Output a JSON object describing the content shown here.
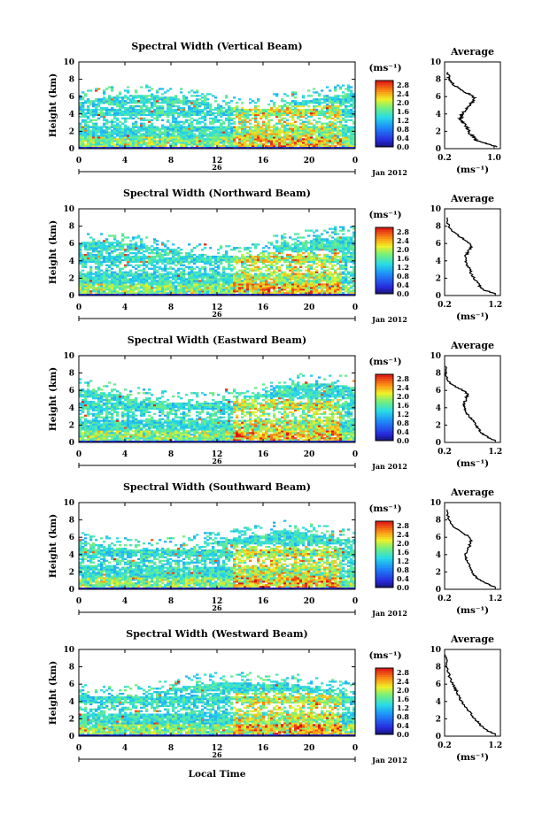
{
  "chart_data": [
    {
      "type": "heatmap",
      "title": "Spectral Width (Vertical Beam)",
      "ylabel": "Height (km)",
      "x_ticks": [
        "0",
        "4",
        "8",
        "12",
        "16",
        "20",
        "0"
      ],
      "y_ticks": [
        "0",
        "2",
        "4",
        "6",
        "8",
        "10"
      ],
      "xlim": [
        0,
        24
      ],
      "ylim": [
        0,
        10
      ],
      "day_label": "26",
      "month_label": "Jan 2012",
      "colorbar": {
        "unit": "(ms⁻¹)",
        "ticks": [
          "0.0",
          "0.4",
          "0.8",
          "1.2",
          "1.6",
          "2.0",
          "2.4",
          "2.8"
        ],
        "range": [
          0,
          3.0
        ]
      },
      "average": {
        "title": "Average",
        "xlabel": "(ms⁻¹)",
        "x_ticks": [
          "0.2",
          "1.0"
        ],
        "xlim": [
          0.2,
          1.1
        ],
        "profile": [
          [
            1.05,
            0.2
          ],
          [
            0.92,
            0.5
          ],
          [
            0.72,
            0.9
          ],
          [
            0.68,
            1.3
          ],
          [
            0.6,
            1.8
          ],
          [
            0.58,
            2.2
          ],
          [
            0.55,
            2.6
          ],
          [
            0.5,
            3.0
          ],
          [
            0.45,
            3.4
          ],
          [
            0.48,
            3.8
          ],
          [
            0.5,
            4.2
          ],
          [
            0.56,
            4.6
          ],
          [
            0.6,
            5.0
          ],
          [
            0.65,
            5.4
          ],
          [
            0.68,
            5.8
          ],
          [
            0.62,
            6.2
          ],
          [
            0.5,
            6.6
          ],
          [
            0.42,
            7.0
          ],
          [
            0.35,
            7.4
          ],
          [
            0.3,
            7.8
          ],
          [
            0.27,
            8.2
          ],
          [
            0.26,
            8.8
          ]
        ]
      }
    },
    {
      "type": "heatmap",
      "title": "Spectral Width (Northward Beam)",
      "ylabel": "Height (km)",
      "x_ticks": [
        "0",
        "4",
        "8",
        "12",
        "16",
        "20",
        "0"
      ],
      "y_ticks": [
        "0",
        "2",
        "4",
        "6",
        "8",
        "10"
      ],
      "xlim": [
        0,
        24
      ],
      "ylim": [
        0,
        10
      ],
      "day_label": "26",
      "month_label": "Jan 2012",
      "colorbar": {
        "unit": "(ms⁻¹)",
        "ticks": [
          "0.0",
          "0.4",
          "0.8",
          "1.2",
          "1.6",
          "2.0",
          "2.4",
          "2.8"
        ],
        "range": [
          0,
          3.0
        ]
      },
      "average": {
        "title": "Average",
        "xlabel": "(ms⁻¹)",
        "x_ticks": [
          "0.2",
          "1.2"
        ],
        "xlim": [
          0.2,
          1.3
        ],
        "profile": [
          [
            1.2,
            0.2
          ],
          [
            1.0,
            0.6
          ],
          [
            0.9,
            1.0
          ],
          [
            0.85,
            1.5
          ],
          [
            0.78,
            2.0
          ],
          [
            0.72,
            2.6
          ],
          [
            0.68,
            3.2
          ],
          [
            0.62,
            3.8
          ],
          [
            0.6,
            4.4
          ],
          [
            0.66,
            5.0
          ],
          [
            0.72,
            5.6
          ],
          [
            0.66,
            6.2
          ],
          [
            0.5,
            6.8
          ],
          [
            0.36,
            7.4
          ],
          [
            0.28,
            8.0
          ],
          [
            0.25,
            9.0
          ]
        ]
      }
    },
    {
      "type": "heatmap",
      "title": "Spectral Width (Eastward Beam)",
      "ylabel": "Height (km)",
      "x_ticks": [
        "0",
        "4",
        "8",
        "12",
        "16",
        "20",
        "0"
      ],
      "y_ticks": [
        "0",
        "2",
        "4",
        "6",
        "8",
        "10"
      ],
      "xlim": [
        0,
        24
      ],
      "ylim": [
        0,
        10
      ],
      "day_label": "26",
      "month_label": "Jan 2012",
      "colorbar": {
        "unit": "(ms⁻¹)",
        "ticks": [
          "0.0",
          "0.4",
          "0.8",
          "1.2",
          "1.6",
          "2.0",
          "2.4",
          "2.8"
        ],
        "range": [
          0,
          3.0
        ]
      },
      "average": {
        "title": "Average",
        "xlabel": "(ms⁻¹)",
        "x_ticks": [
          "0.2",
          "1.2"
        ],
        "xlim": [
          0.2,
          1.3
        ],
        "profile": [
          [
            1.2,
            0.2
          ],
          [
            1.05,
            0.6
          ],
          [
            0.95,
            1.0
          ],
          [
            0.88,
            1.5
          ],
          [
            0.82,
            2.0
          ],
          [
            0.74,
            2.6
          ],
          [
            0.66,
            3.2
          ],
          [
            0.6,
            3.8
          ],
          [
            0.58,
            4.4
          ],
          [
            0.62,
            5.0
          ],
          [
            0.66,
            5.6
          ],
          [
            0.5,
            6.2
          ],
          [
            0.3,
            6.8
          ],
          [
            0.24,
            7.6
          ],
          [
            0.22,
            8.8
          ]
        ]
      }
    },
    {
      "type": "heatmap",
      "title": "Spectral Width (Southward Beam)",
      "ylabel": "Height (km)",
      "x_ticks": [
        "0",
        "4",
        "8",
        "12",
        "16",
        "20",
        "0"
      ],
      "y_ticks": [
        "0",
        "2",
        "4",
        "6",
        "8",
        "10"
      ],
      "xlim": [
        0,
        24
      ],
      "ylim": [
        0,
        10
      ],
      "day_label": "26",
      "month_label": "Jan 2012",
      "colorbar": {
        "unit": "(ms⁻¹)",
        "ticks": [
          "0.0",
          "0.4",
          "0.8",
          "1.2",
          "1.6",
          "2.0",
          "2.4",
          "2.8"
        ],
        "range": [
          0,
          3.0
        ]
      },
      "average": {
        "title": "Average",
        "xlabel": "(ms⁻¹)",
        "x_ticks": [
          "0.2",
          "1.2"
        ],
        "xlim": [
          0.2,
          1.3
        ],
        "profile": [
          [
            1.2,
            0.2
          ],
          [
            1.05,
            0.6
          ],
          [
            0.9,
            1.0
          ],
          [
            0.8,
            1.5
          ],
          [
            0.74,
            2.0
          ],
          [
            0.7,
            2.6
          ],
          [
            0.64,
            3.2
          ],
          [
            0.6,
            3.8
          ],
          [
            0.66,
            4.6
          ],
          [
            0.72,
            5.4
          ],
          [
            0.7,
            6.0
          ],
          [
            0.52,
            6.6
          ],
          [
            0.34,
            7.4
          ],
          [
            0.27,
            8.2
          ],
          [
            0.25,
            9.2
          ]
        ]
      }
    },
    {
      "type": "heatmap",
      "title": "Spectral Width (Westward Beam)",
      "ylabel": "Height (km)",
      "xlabel": "Local Time",
      "x_ticks": [
        "0",
        "4",
        "8",
        "12",
        "16",
        "20",
        "0"
      ],
      "y_ticks": [
        "0",
        "2",
        "4",
        "6",
        "8",
        "10"
      ],
      "xlim": [
        0,
        24
      ],
      "ylim": [
        0,
        10
      ],
      "day_label": "26",
      "month_label": "Jan 2012",
      "colorbar": {
        "unit": "(ms⁻¹)",
        "ticks": [
          "0.0",
          "0.4",
          "0.8",
          "1.2",
          "1.6",
          "2.0",
          "2.4",
          "2.8"
        ],
        "range": [
          0,
          3.0
        ]
      },
      "average": {
        "title": "Average",
        "xlabel": "(ms⁻¹)",
        "x_ticks": [
          "0.2",
          "1.2"
        ],
        "xlim": [
          0.2,
          1.3
        ],
        "profile": [
          [
            1.2,
            0.2
          ],
          [
            1.05,
            0.6
          ],
          [
            0.95,
            1.0
          ],
          [
            0.88,
            1.5
          ],
          [
            0.8,
            2.0
          ],
          [
            0.72,
            2.6
          ],
          [
            0.64,
            3.2
          ],
          [
            0.55,
            3.8
          ],
          [
            0.5,
            4.4
          ],
          [
            0.45,
            5.0
          ],
          [
            0.4,
            5.6
          ],
          [
            0.32,
            6.4
          ],
          [
            0.27,
            7.4
          ],
          [
            0.24,
            8.4
          ],
          [
            0.22,
            9.4
          ]
        ]
      }
    }
  ]
}
